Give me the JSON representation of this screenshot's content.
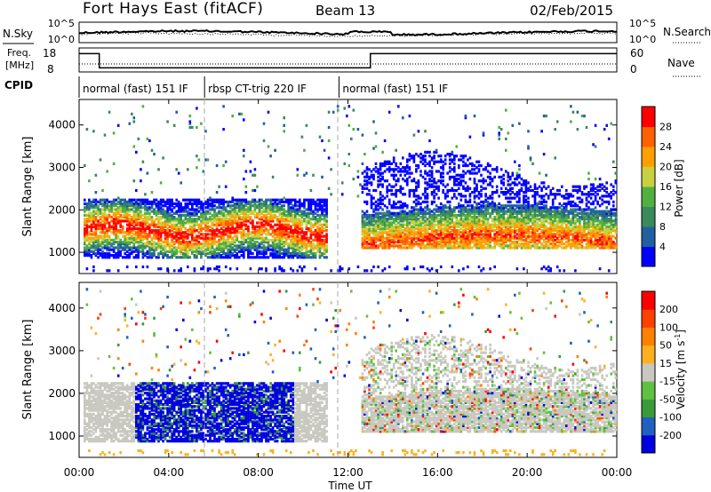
{
  "header": {
    "radar": "Fort Hays East (fitACF)",
    "beam": "Beam 13",
    "date": "02/Feb/2015"
  },
  "summary_panel": {
    "nsky_label": "N.Sky",
    "nsearch_label": "N.Search",
    "nsky_ticks": [
      "10^5",
      "10^0"
    ],
    "nsearch_ticks": [
      "10^5",
      "10^0"
    ],
    "freq_label_1": "Freq.",
    "freq_label_2": "[MHz]",
    "freq_ticks": [
      "18",
      "8"
    ],
    "nave_label": "Nave",
    "nave_ticks": [
      "60",
      "0"
    ],
    "cpid_label": "CPID",
    "cpid_segments": [
      {
        "label": "normal (fast) 151 IF",
        "start_h": 0,
        "end_h": 5.6
      },
      {
        "label": "rbsp CT-trig 220 IF",
        "start_h": 5.6,
        "end_h": 11.6
      },
      {
        "label": "normal (fast) 151 IF",
        "start_h": 11.6,
        "end_h": 24
      }
    ],
    "freq_mhz_series": [
      {
        "start_h": 0,
        "end_h": 0.9,
        "value": 17.8
      },
      {
        "start_h": 0.9,
        "end_h": 13.0,
        "value": 10.2
      },
      {
        "start_h": 13.0,
        "end_h": 24,
        "value": 17.8
      }
    ],
    "nave_level": 10
  },
  "chart_data": [
    {
      "type": "heatmap",
      "name": "power",
      "ylabel": "Slant Range [km]",
      "yticks": [
        "1000",
        "2000",
        "3000",
        "4000"
      ],
      "ylim": [
        500,
        4600
      ],
      "xlim": [
        0,
        24
      ],
      "colorbar_label": "Power [dB]",
      "colorbar_ticks": [
        "28",
        "24",
        "20",
        "16",
        "12",
        "8",
        "4"
      ],
      "colorbar_colors": [
        "#0000ff",
        "#2060a0",
        "#3a8a5a",
        "#50b040",
        "#c8d040",
        "#ffa000",
        "#ff6000",
        "#ff0000"
      ]
    },
    {
      "type": "heatmap",
      "name": "velocity",
      "ylabel": "Slant Range [km]",
      "yticks": [
        "1000",
        "2000",
        "3000",
        "4000"
      ],
      "ylim": [
        500,
        4600
      ],
      "xlim": [
        0,
        24
      ],
      "colorbar_label_1": "Velocity",
      "colorbar_label_2": "[m s",
      "colorbar_label_sup": "-1",
      "colorbar_label_3": "]",
      "colorbar_ticks": [
        "200",
        "100",
        "50",
        "15",
        "-15",
        "-50",
        "-100",
        "-200"
      ],
      "colorbar_colors": [
        "#0000e0",
        "#2060c0",
        "#3a9a3a",
        "#60c040",
        "#c8c8c0",
        "#ffb020",
        "#ff8000",
        "#ff4000",
        "#ff0000"
      ]
    }
  ],
  "xaxis": {
    "label": "Time UT",
    "ticks": [
      "00:00",
      "04:00",
      "08:00",
      "12:00",
      "16:00",
      "20:00",
      "00:00"
    ]
  }
}
